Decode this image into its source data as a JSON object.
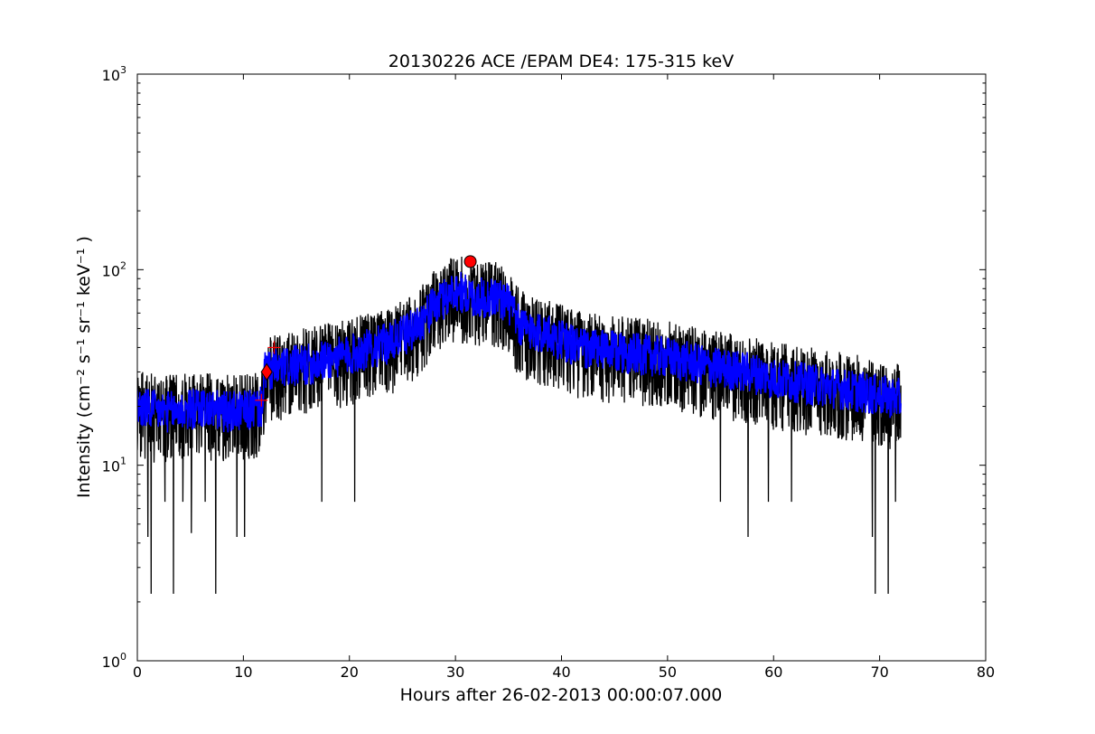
{
  "chart_data": {
    "type": "line",
    "title": "20130226 ACE /EPAM DE4: 175-315 keV",
    "xlabel": "Hours after 26-02-2013 00:00:07.000",
    "ylabel": "Intensity (cm⁻² s⁻¹ sr⁻¹ keV⁻¹ )",
    "xlim": [
      0,
      80
    ],
    "ylim": [
      1,
      1000
    ],
    "yscale": "log",
    "grid": false,
    "legend": "none",
    "x_ticks": [
      "0",
      "10",
      "20",
      "30",
      "40",
      "50",
      "60",
      "70",
      "80"
    ],
    "y_ticks": [
      {
        "base": "10",
        "exp": "0"
      },
      {
        "base": "10",
        "exp": "1"
      },
      {
        "base": "10",
        "exp": "2"
      },
      {
        "base": "10",
        "exp": "3"
      }
    ],
    "series": [
      {
        "style": "raw",
        "color": "#000000",
        "x": [
          0,
          2,
          4,
          6,
          8,
          10,
          11.7,
          12,
          14,
          16,
          18,
          20,
          22,
          24,
          26,
          28,
          30,
          31,
          32,
          34,
          35,
          36,
          38,
          40,
          42,
          44,
          46,
          48,
          50,
          52,
          54,
          56,
          58,
          60,
          62,
          64,
          66,
          68,
          70,
          72
        ],
        "y": [
          20,
          19,
          19,
          20,
          19,
          19,
          20,
          30,
          32,
          33,
          35,
          37,
          40,
          43,
          50,
          65,
          80,
          75,
          72,
          73,
          68,
          52,
          48,
          44,
          40,
          39,
          38,
          37,
          36,
          34,
          32,
          31,
          30,
          28,
          27,
          26,
          25,
          24,
          23,
          22
        ],
        "spread_low": 0.5,
        "spread_high": 1.6,
        "dips": [
          {
            "x": 1.3,
            "y": 2.2
          },
          {
            "x": 3.4,
            "y": 2.2
          },
          {
            "x": 7.4,
            "y": 2.2
          },
          {
            "x": 1.0,
            "y": 4.3
          },
          {
            "x": 9.4,
            "y": 4.3
          },
          {
            "x": 10.1,
            "y": 4.3
          },
          {
            "x": 5.1,
            "y": 4.5
          },
          {
            "x": 17.4,
            "y": 6.5
          },
          {
            "x": 20.5,
            "y": 6.5
          },
          {
            "x": 55.0,
            "y": 6.5
          },
          {
            "x": 57.6,
            "y": 4.3
          },
          {
            "x": 59.5,
            "y": 6.5
          },
          {
            "x": 61.7,
            "y": 6.5
          },
          {
            "x": 69.3,
            "y": 4.3
          },
          {
            "x": 69.6,
            "y": 2.2
          },
          {
            "x": 70.8,
            "y": 2.2
          },
          {
            "x": 71.5,
            "y": 6.5
          },
          {
            "x": 2.6,
            "y": 6.5
          },
          {
            "x": 4.3,
            "y": 6.5
          },
          {
            "x": 6.4,
            "y": 6.5
          }
        ]
      },
      {
        "style": "smoothed",
        "color": "#0000ff",
        "x": [
          0,
          2,
          4,
          6,
          8,
          10,
          11.7,
          12,
          14,
          16,
          18,
          20,
          22,
          24,
          26,
          28,
          30,
          31,
          32,
          34,
          35,
          36,
          38,
          40,
          42,
          44,
          46,
          48,
          50,
          52,
          54,
          56,
          58,
          60,
          62,
          64,
          66,
          68,
          70,
          72
        ],
        "y": [
          20,
          19,
          19,
          20,
          19,
          19,
          20,
          30,
          32,
          33,
          35,
          37,
          40,
          43,
          50,
          65,
          80,
          75,
          72,
          73,
          68,
          52,
          48,
          44,
          40,
          39,
          38,
          37,
          36,
          34,
          32,
          31,
          30,
          28,
          27,
          26,
          25,
          24,
          23,
          22
        ],
        "spread_low": 0.75,
        "spread_high": 1.3
      }
    ],
    "markers": [
      {
        "type": "plus",
        "x": 11.7,
        "y": 21.5,
        "color": "#ff0000"
      },
      {
        "type": "plus",
        "x": 12.9,
        "y": 40,
        "color": "#ff0000"
      },
      {
        "type": "diamond",
        "x": 12.2,
        "y": 30,
        "color": "#ff0000"
      },
      {
        "type": "circle",
        "x": 31.4,
        "y": 110,
        "color": "#ff0000"
      }
    ]
  }
}
